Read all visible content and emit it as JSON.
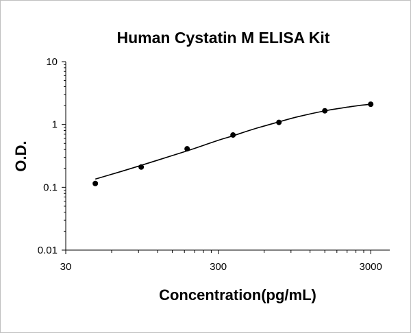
{
  "chart_data": {
    "type": "scatter",
    "title": "Human Cystatin M ELISA Kit",
    "xlabel": "Concentration(pg/mL)",
    "ylabel": "O.D.",
    "x_scale": "log",
    "y_scale": "log",
    "xlim": [
      30,
      4000
    ],
    "ylim": [
      0.01,
      10
    ],
    "x_tick_labels": [
      "30",
      "300",
      "3000"
    ],
    "y_tick_labels": [
      "10",
      "1",
      "0.1",
      "0.01"
    ],
    "grid": false,
    "legend": "none",
    "series": [
      {
        "marker_color": "#000000",
        "x": [
          46.875,
          93.75,
          187.5,
          375,
          750,
          1500,
          3000
        ],
        "y": [
          0.115,
          0.21,
          0.41,
          0.68,
          1.08,
          1.65,
          2.1
        ]
      }
    ],
    "fit_curve": {
      "color": "#000000",
      "x": [
        46.875,
        70,
        100,
        150,
        200,
        300,
        375,
        500,
        750,
        1000,
        1500,
        2000,
        2500,
        3000
      ],
      "y": [
        0.135,
        0.18,
        0.235,
        0.32,
        0.4,
        0.56,
        0.66,
        0.83,
        1.1,
        1.33,
        1.65,
        1.85,
        2.0,
        2.1
      ]
    }
  }
}
